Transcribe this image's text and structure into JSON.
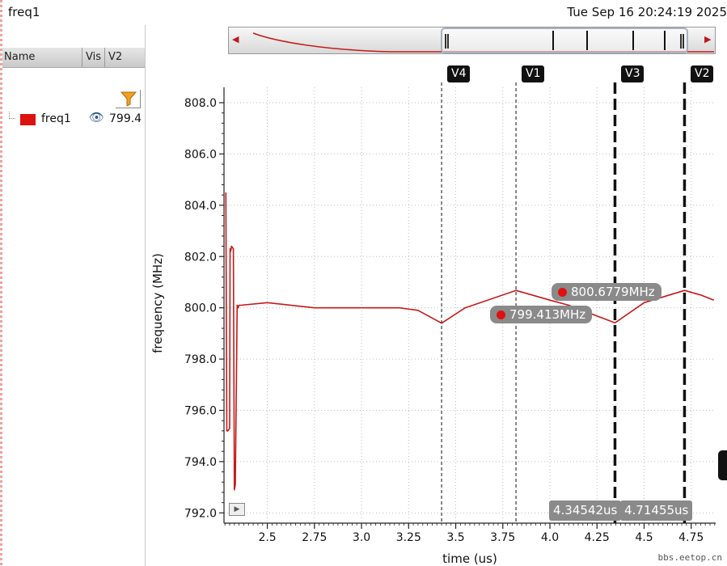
{
  "window": {
    "title": "freq1",
    "datetime": "Tue Sep 16 20:24:19 2025"
  },
  "signal_panel": {
    "columns": [
      "Name",
      "Vis",
      "V2"
    ],
    "signals": [
      {
        "name": "freq1",
        "color": "#dd1111",
        "visible_icon": "eye-icon",
        "v2_value": "799.4"
      }
    ],
    "filter_icon": "funnel-filter-icon"
  },
  "overview": {
    "left_arrow": "◀",
    "right_arrow": "▶",
    "grip": "||"
  },
  "markers": [
    {
      "name": "V4",
      "x": 3.425,
      "style": "dashed-thin"
    },
    {
      "name": "V1",
      "x": 3.82,
      "style": "dashed-thin"
    },
    {
      "name": "V3",
      "x": 4.34542,
      "style": "dashed-bold"
    },
    {
      "name": "V2",
      "x": 4.71455,
      "style": "dashed-bold"
    }
  ],
  "cursor_readouts": {
    "v3_time": "4.34542us",
    "v2_time": "4.71455us"
  },
  "point_labels": {
    "high": "800.6779MHz",
    "low": "799.413MHz"
  },
  "watermark": "bbs.eetop.cn",
  "chart_data": {
    "type": "line",
    "xlabel": "time (us)",
    "ylabel": "frequency (MHz)",
    "xlim": [
      2.27,
      4.88
    ],
    "ylim": [
      791.6,
      808.6
    ],
    "xticks": [
      2.5,
      2.75,
      3.0,
      3.25,
      3.5,
      3.75,
      4.0,
      4.25,
      4.5,
      4.75
    ],
    "xtick_labels": [
      "2.5",
      "2.75",
      "3.0",
      "3.25",
      "3.5",
      "3.75",
      "4.0",
      "4.25",
      "4.5",
      "4.75"
    ],
    "yticks": [
      792.0,
      794.0,
      796.0,
      798.0,
      800.0,
      802.0,
      804.0,
      806.0,
      808.0
    ],
    "ytick_labels": [
      "792.0",
      "794.0",
      "796.0",
      "798.0",
      "800.0",
      "802.0",
      "804.0",
      "806.0",
      "808.0"
    ],
    "grid": true,
    "series": [
      {
        "name": "freq1",
        "color": "#c41a1a",
        "x": [
          2.28,
          2.285,
          2.29,
          2.3,
          2.302,
          2.305,
          2.31,
          2.32,
          2.325,
          2.33,
          2.34,
          2.345,
          2.35,
          2.36,
          2.5,
          2.75,
          3.0,
          3.2,
          3.3,
          3.425,
          3.55,
          3.82,
          4.0,
          4.1,
          4.34542,
          4.5,
          4.71455,
          4.8,
          4.87
        ],
        "y": [
          804.5,
          795.2,
          795.2,
          795.3,
          802.3,
          802.2,
          802.4,
          802.3,
          792.9,
          793.1,
          800.1,
          800.0,
          800.1,
          800.1,
          800.2,
          800.0,
          800.0,
          800.0,
          799.9,
          799.4,
          800.0,
          800.6779,
          800.3,
          800.1,
          799.413,
          800.2,
          800.6779,
          800.5,
          800.3
        ]
      }
    ],
    "annotations": [
      {
        "x": 4.34542,
        "y": 799.413,
        "text": "799.413MHz"
      },
      {
        "x": 4.71455,
        "y": 800.6779,
        "text": "800.6779MHz"
      }
    ]
  }
}
